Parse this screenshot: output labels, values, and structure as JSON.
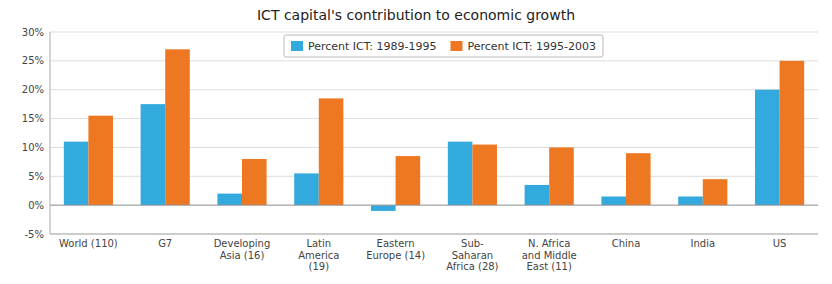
{
  "chart_data": {
    "type": "bar",
    "title": "ICT capital's contribution to economic growth",
    "categories": [
      "World (110)",
      "G7",
      "Developing\nAsia (16)",
      "Latin\nAmerica\n(19)",
      "Eastern\nEurope (14)",
      "Sub-\nSaharan\nAfrica (28)",
      "N. Africa\nand Middle\nEast (11)",
      "China",
      "India",
      "US"
    ],
    "series": [
      {
        "name": "Percent ICT: 1989-1995",
        "color": "#33aadd",
        "values": [
          11.0,
          17.5,
          2.0,
          5.5,
          -1.0,
          11.0,
          3.5,
          1.5,
          1.5,
          20.0
        ]
      },
      {
        "name": "Percent ICT: 1995-2003",
        "color": "#ee7722",
        "values": [
          15.5,
          27.0,
          8.0,
          18.5,
          8.5,
          10.5,
          10.0,
          9.0,
          4.5,
          25.0
        ]
      }
    ],
    "ylim": [
      -5,
      30
    ],
    "yticks": [
      {
        "value": -5,
        "label": "-5%"
      },
      {
        "value": 0,
        "label": "0%"
      },
      {
        "value": 5,
        "label": "5%"
      },
      {
        "value": 10,
        "label": "10%"
      },
      {
        "value": 15,
        "label": "15%"
      },
      {
        "value": 20,
        "label": "20%"
      },
      {
        "value": 25,
        "label": "25%"
      },
      {
        "value": 30,
        "label": "30%"
      }
    ],
    "grid": true,
    "legend": "upper right"
  }
}
